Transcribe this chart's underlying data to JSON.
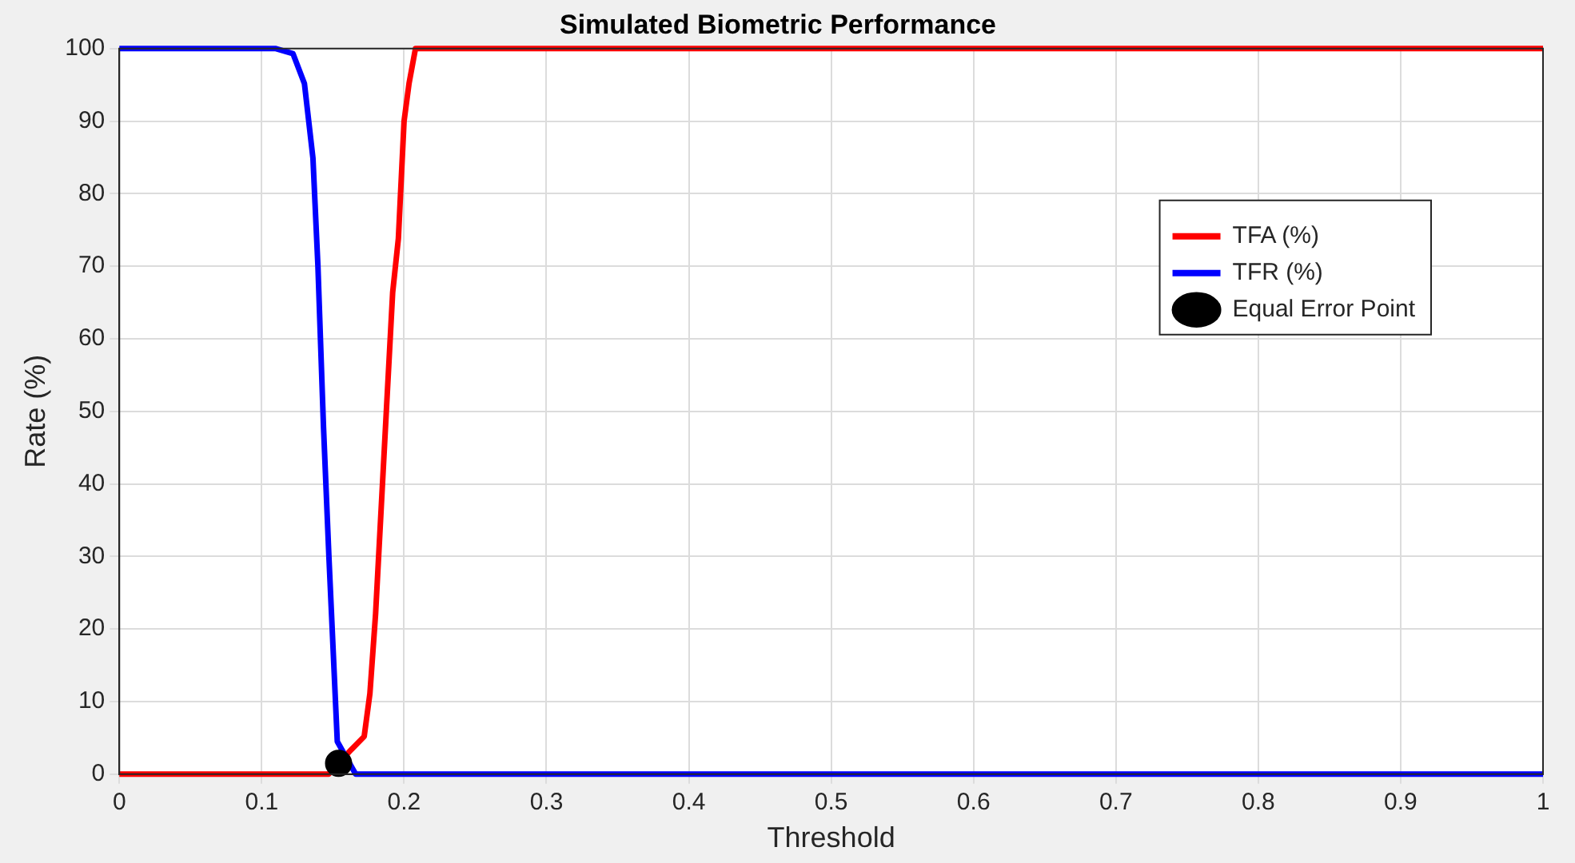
{
  "chart_data": {
    "type": "line",
    "title": "Simulated Biometric Performance",
    "xlabel": "Threshold",
    "ylabel": "Rate (%)",
    "xlim": [
      0,
      1
    ],
    "xticks": [
      0,
      0.1,
      0.2,
      0.3,
      0.4,
      0.5,
      0.6,
      0.7,
      0.8,
      0.9,
      1
    ],
    "ylim": [
      0,
      100
    ],
    "yticks": [
      0,
      10,
      20,
      30,
      40,
      50,
      60,
      70,
      80,
      90,
      100
    ],
    "grid": true,
    "legend": "top right",
    "marker": "none",
    "line_style": "solid",
    "series": [
      {
        "name": "TFA (%)",
        "color": "#ff0000",
        "x": [
          0,
          0.147,
          0.163,
          0.172,
          0.176,
          0.18,
          0.184,
          0.188,
          0.192,
          0.196,
          0.2,
          0.2035,
          0.208,
          1
        ],
        "values": [
          0,
          0,
          3.4,
          5.2,
          11.1,
          22.1,
          36.9,
          51.7,
          66.4,
          73.8,
          90,
          95.2,
          100,
          100
        ]
      },
      {
        "name": "TFR (%)",
        "color": "#0000ff",
        "x": [
          0,
          0.11,
          0.122,
          0.13,
          0.136,
          0.1395,
          0.1434,
          0.1473,
          0.1531,
          0.166,
          1
        ],
        "values": [
          100,
          100,
          99.3,
          95.2,
          84.9,
          70,
          47.9,
          29.6,
          4.5,
          0,
          0
        ]
      },
      {
        "name": "Equal Error Point",
        "type": "scatter",
        "marker": "circle",
        "color": "#000000",
        "x": [
          0.154
        ],
        "values": [
          1.5
        ]
      }
    ]
  }
}
